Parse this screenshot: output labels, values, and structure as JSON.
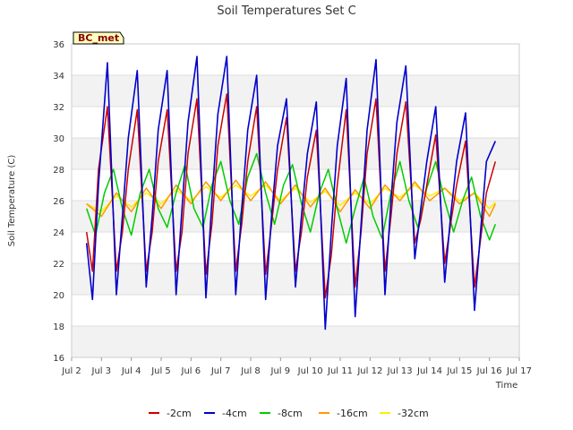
{
  "chart_data": {
    "type": "line",
    "title": "Soil Temperatures Set C",
    "xlabel": "Time",
    "ylabel": "Soil Temperature (C)",
    "badge": "BC_met",
    "x_ticks": [
      "Jul 2",
      "Jul 3",
      "Jul 4",
      "Jul 5",
      "Jul 6",
      "Jul 7",
      "Jul 8",
      "Jul 9",
      "Jul 10",
      "Jul 11",
      "Jul 12",
      "Jul 13",
      "Jul 14",
      "Jul 15",
      "Jul 16",
      "Jul 17"
    ],
    "xlim": [
      2,
      17
    ],
    "ylim": [
      16,
      36
    ],
    "y_ticks": [
      16,
      18,
      20,
      22,
      24,
      26,
      28,
      30,
      32,
      34,
      36
    ],
    "grid": true,
    "legend_position": "bottom",
    "background_bands": "#f2f2f2",
    "series": [
      {
        "name": "-2cm",
        "color": "#cc0000",
        "x": [
          2.5,
          2.7,
          2.9,
          3.2,
          3.5,
          3.7,
          3.9,
          4.2,
          4.5,
          4.7,
          4.9,
          5.2,
          5.5,
          5.7,
          5.9,
          6.2,
          6.5,
          6.7,
          6.9,
          7.2,
          7.5,
          7.7,
          7.9,
          8.2,
          8.5,
          8.7,
          8.9,
          9.2,
          9.5,
          9.7,
          9.9,
          10.2,
          10.5,
          10.7,
          10.9,
          11.2,
          11.5,
          11.7,
          11.9,
          12.2,
          12.5,
          12.7,
          12.9,
          13.2,
          13.5,
          13.7,
          13.9,
          14.2,
          14.5,
          14.7,
          14.9,
          15.2,
          15.5,
          15.7,
          15.9,
          16.2
        ],
        "y": [
          24.0,
          21.5,
          28.0,
          32.0,
          21.5,
          24.0,
          28.0,
          31.8,
          21.5,
          24.0,
          28.5,
          31.8,
          21.5,
          24.0,
          29.0,
          32.5,
          21.3,
          24.5,
          29.5,
          32.8,
          21.5,
          24.5,
          28.5,
          32.0,
          21.3,
          24.5,
          28.0,
          31.3,
          21.5,
          24.0,
          27.5,
          30.5,
          19.8,
          22.5,
          27.0,
          31.8,
          20.5,
          24.0,
          29.0,
          32.5,
          21.5,
          25.0,
          29.0,
          32.3,
          23.3,
          24.8,
          27.0,
          30.2,
          22.0,
          24.5,
          27.0,
          29.8,
          20.5,
          23.5,
          26.5,
          28.5
        ]
      },
      {
        "name": "-4cm",
        "color": "#0000cc",
        "x": [
          2.5,
          2.7,
          2.9,
          3.2,
          3.5,
          3.7,
          3.9,
          4.2,
          4.5,
          4.7,
          4.9,
          5.2,
          5.5,
          5.7,
          5.9,
          6.2,
          6.5,
          6.7,
          6.9,
          7.2,
          7.5,
          7.7,
          7.9,
          8.2,
          8.5,
          8.7,
          8.9,
          9.2,
          9.5,
          9.7,
          9.9,
          10.2,
          10.5,
          10.7,
          10.9,
          11.2,
          11.5,
          11.7,
          11.9,
          12.2,
          12.5,
          12.7,
          12.9,
          13.2,
          13.5,
          13.7,
          13.9,
          14.2,
          14.5,
          14.7,
          14.9,
          15.2,
          15.5,
          15.7,
          15.9,
          16.2
        ],
        "y": [
          23.3,
          19.7,
          27.0,
          34.8,
          20.0,
          25.0,
          30.0,
          34.3,
          20.5,
          25.0,
          30.5,
          34.3,
          20.0,
          25.5,
          31.0,
          35.2,
          19.8,
          26.0,
          31.5,
          35.2,
          20.0,
          25.5,
          30.5,
          34.0,
          19.7,
          25.0,
          29.5,
          32.5,
          20.5,
          25.0,
          29.0,
          32.3,
          17.8,
          24.0,
          29.5,
          33.8,
          18.6,
          24.5,
          30.5,
          35.0,
          20.0,
          26.0,
          31.0,
          34.6,
          22.3,
          25.5,
          28.5,
          32.0,
          20.8,
          25.0,
          28.5,
          31.6,
          19.0,
          24.0,
          28.5,
          29.8
        ]
      },
      {
        "name": "-8cm",
        "color": "#00cc00",
        "x": [
          2.5,
          2.8,
          3.1,
          3.4,
          3.7,
          4.0,
          4.3,
          4.6,
          4.9,
          5.2,
          5.5,
          5.8,
          6.1,
          6.4,
          6.7,
          7.0,
          7.3,
          7.6,
          7.9,
          8.2,
          8.5,
          8.8,
          9.1,
          9.4,
          9.7,
          10.0,
          10.3,
          10.6,
          10.9,
          11.2,
          11.5,
          11.8,
          12.1,
          12.4,
          12.7,
          13.0,
          13.3,
          13.6,
          13.9,
          14.2,
          14.5,
          14.8,
          15.1,
          15.4,
          15.7,
          16.0,
          16.2
        ],
        "y": [
          25.5,
          23.8,
          26.5,
          28.0,
          25.5,
          23.8,
          26.5,
          28.0,
          25.5,
          24.3,
          26.5,
          28.3,
          25.5,
          24.3,
          27.0,
          28.5,
          26.0,
          24.5,
          27.5,
          29.0,
          26.5,
          24.5,
          27.0,
          28.3,
          25.8,
          24.0,
          26.5,
          28.0,
          25.5,
          23.3,
          25.5,
          27.5,
          25.0,
          23.6,
          26.5,
          28.5,
          26.0,
          24.3,
          26.8,
          28.5,
          26.0,
          24.0,
          26.0,
          27.5,
          25.0,
          23.5,
          24.5
        ]
      },
      {
        "name": "-16cm",
        "color": "#ff9900",
        "x": [
          2.5,
          3.0,
          3.5,
          4.0,
          4.5,
          5.0,
          5.5,
          6.0,
          6.5,
          7.0,
          7.5,
          8.0,
          8.5,
          9.0,
          9.5,
          10.0,
          10.5,
          11.0,
          11.5,
          12.0,
          12.5,
          13.0,
          13.5,
          14.0,
          14.5,
          15.0,
          15.5,
          16.0,
          16.2
        ],
        "y": [
          25.8,
          25.0,
          26.5,
          25.3,
          26.8,
          25.5,
          27.0,
          25.8,
          27.2,
          26.0,
          27.3,
          26.0,
          27.2,
          25.8,
          27.0,
          25.6,
          26.8,
          25.3,
          26.7,
          25.5,
          27.0,
          26.0,
          27.2,
          26.0,
          26.8,
          25.8,
          26.5,
          25.0,
          25.8
        ]
      },
      {
        "name": "-32cm",
        "color": "#ffee00",
        "x": [
          2.5,
          3.0,
          3.5,
          4.0,
          4.5,
          5.0,
          5.5,
          6.0,
          6.5,
          7.0,
          7.5,
          8.0,
          8.5,
          9.0,
          9.5,
          10.0,
          10.5,
          11.0,
          11.5,
          12.0,
          12.5,
          13.0,
          13.5,
          14.0,
          14.5,
          15.0,
          15.5,
          16.0,
          16.2
        ],
        "y": [
          25.8,
          25.3,
          26.3,
          25.6,
          26.5,
          25.8,
          26.7,
          26.0,
          26.9,
          26.2,
          27.0,
          26.3,
          27.0,
          26.0,
          26.8,
          25.9,
          26.6,
          25.7,
          26.5,
          25.8,
          26.8,
          26.2,
          27.0,
          26.3,
          26.8,
          26.0,
          26.5,
          25.5,
          25.9
        ]
      }
    ]
  }
}
